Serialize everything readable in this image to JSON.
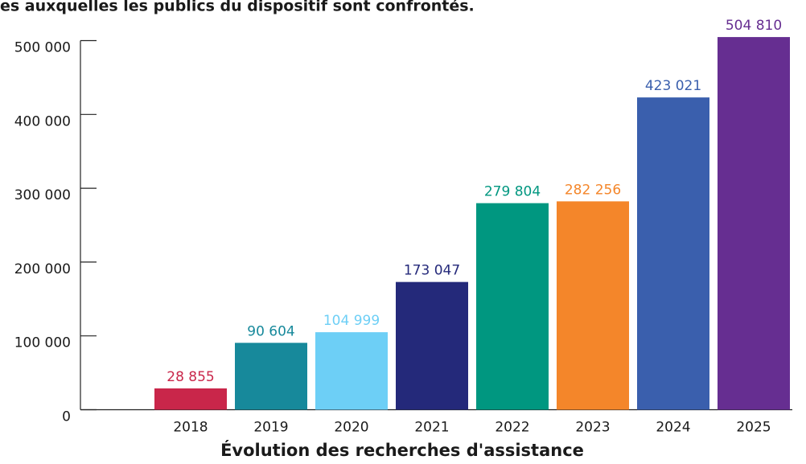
{
  "chart_data": {
    "type": "bar",
    "title": "es auxquelles les publics du dispositif sont confrontés.",
    "x_label": "Évolution des recherches d'assistance",
    "categories": [
      "2018",
      "2019",
      "2020",
      "2021",
      "2022",
      "2023",
      "2024",
      "2025"
    ],
    "values": [
      28855,
      90604,
      104999,
      173047,
      279804,
      282256,
      423021,
      504810
    ],
    "value_labels": [
      "28 855",
      "90 604",
      "104 999",
      "173 047",
      "279 804",
      "282 256",
      "423 021",
      "504 810"
    ],
    "colors": [
      "#c9264a",
      "#17899b",
      "#6dcff6",
      "#24297a",
      "#009780",
      "#f4862a",
      "#3a5fad",
      "#662e91"
    ],
    "ylim": [
      0,
      500000
    ],
    "yticks": [
      {
        "value": 0,
        "label": "0"
      },
      {
        "value": 100000,
        "label": "100 000"
      },
      {
        "value": 200000,
        "label": "200 000"
      },
      {
        "value": 300000,
        "label": "300 000"
      },
      {
        "value": 400000,
        "label": "400 000"
      },
      {
        "value": 500000,
        "label": "500 000"
      }
    ]
  }
}
